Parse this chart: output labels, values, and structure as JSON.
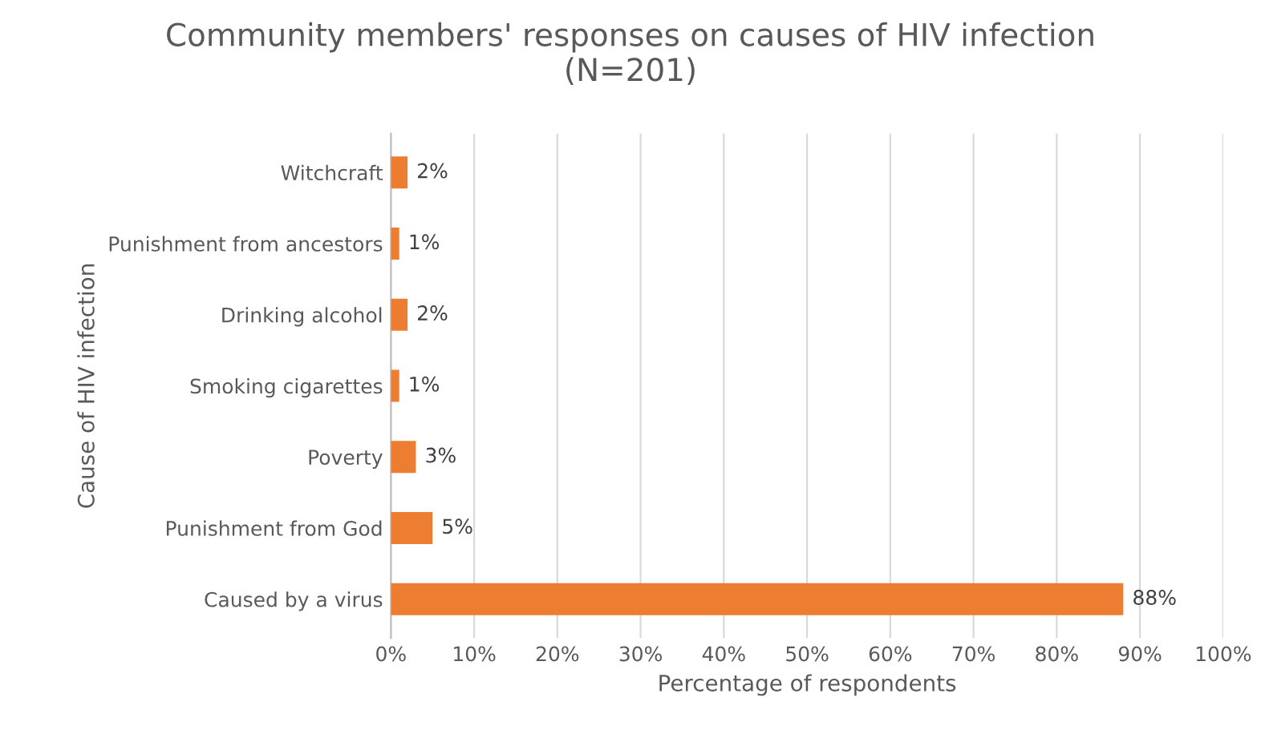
{
  "chart_data": {
    "type": "bar",
    "orientation": "horizontal",
    "title": "Community members' responses on causes of HIV infection\n(N=201)",
    "xlabel": "Percentage of respondents",
    "ylabel": "Cause of HIV infection",
    "categories": [
      "Witchcraft",
      "Punishment from ancestors",
      "Drinking alcohol",
      "Smoking cigarettes",
      "Poverty",
      "Punishment from God",
      "Caused by a virus"
    ],
    "values": [
      2,
      1,
      2,
      1,
      3,
      5,
      88
    ],
    "value_labels": [
      "2%",
      "1%",
      "2%",
      "1%",
      "3%",
      "5%",
      "88%"
    ],
    "color": "#ed7d31",
    "xlim": [
      0,
      100
    ],
    "xticks": [
      {
        "value": 0,
        "label": "0%"
      },
      {
        "value": 10,
        "label": "10%"
      },
      {
        "value": 20,
        "label": "20%"
      },
      {
        "value": 30,
        "label": "30%"
      },
      {
        "value": 40,
        "label": "40%"
      },
      {
        "value": 50,
        "label": "50%"
      },
      {
        "value": 60,
        "label": "60%"
      },
      {
        "value": 70,
        "label": "70%"
      },
      {
        "value": 80,
        "label": "80%"
      },
      {
        "value": 90,
        "label": "90%"
      },
      {
        "value": 100,
        "label": "100%"
      }
    ],
    "grid": "x",
    "legend": false
  }
}
